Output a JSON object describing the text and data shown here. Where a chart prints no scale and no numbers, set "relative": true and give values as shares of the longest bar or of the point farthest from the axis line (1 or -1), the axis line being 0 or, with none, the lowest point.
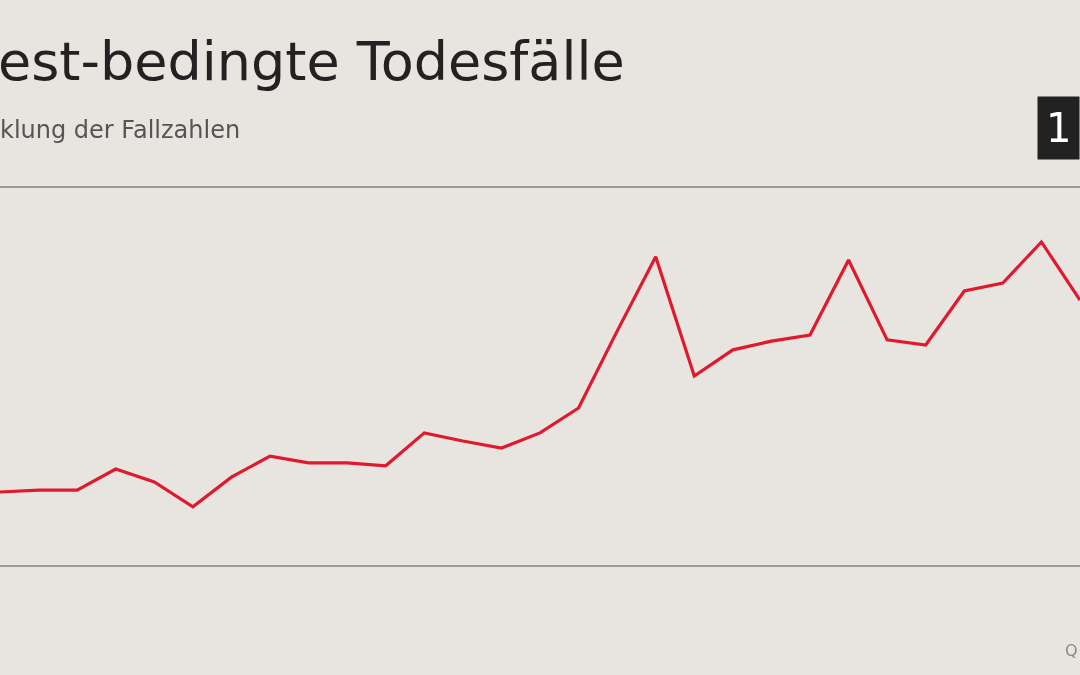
{
  "chart_data": {
    "type": "line",
    "title": "est-bedingte Todesfälle",
    "subtitle": "klung der Fallzahlen",
    "relative": true,
    "grid": false,
    "marker": "none",
    "line_style": "solid",
    "categories": [
      null,
      null,
      null,
      null,
      null,
      null,
      null,
      null,
      null,
      null,
      null,
      null,
      null,
      null,
      null,
      null,
      null,
      null,
      null,
      null,
      null,
      null,
      null,
      null,
      null,
      null,
      null,
      null,
      null
    ],
    "series": [
      {
        "color": "#e0192d",
        "values": [
          0.226,
          0.232,
          0.232,
          0.297,
          0.257,
          0.18,
          0.272,
          0.337,
          0.316,
          0.316,
          0.307,
          0.409,
          0.384,
          0.362,
          0.409,
          0.486,
          0.724,
          0.954,
          0.585,
          0.666,
          0.693,
          0.712,
          0.944,
          0.697,
          0.681,
          0.848,
          0.873,
          1,
          0.82
        ]
      }
    ],
    "annotations": [
      "1",
      "Q"
    ]
  }
}
